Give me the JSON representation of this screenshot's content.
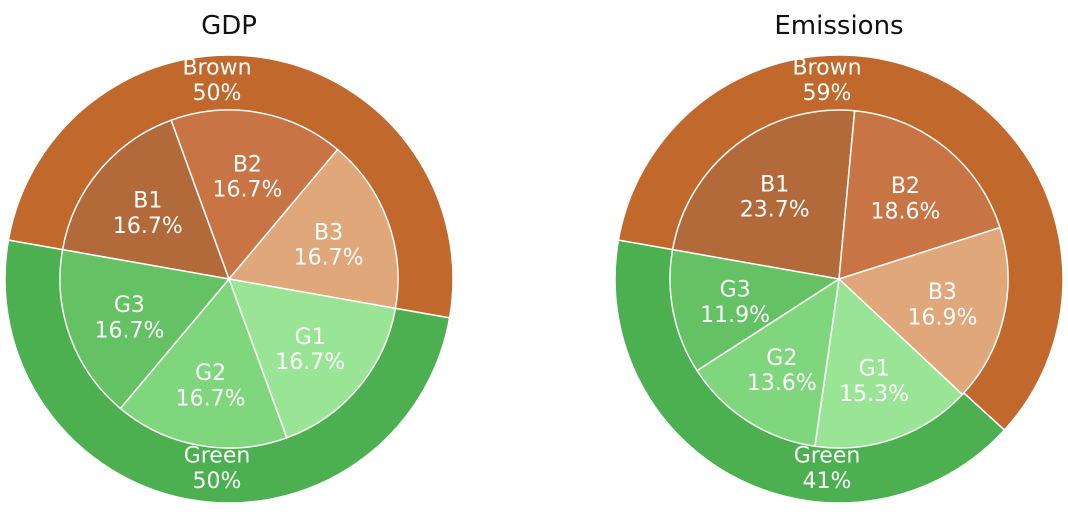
{
  "chart_data": [
    {
      "type": "pie",
      "title": "GDP",
      "outer_ring": [
        {
          "label": "Brown",
          "value": 50,
          "value_label": "50%",
          "color": "#c1682d"
        },
        {
          "label": "Green",
          "value": 50,
          "value_label": "50%",
          "color": "#4caf50"
        }
      ],
      "inner_ring": [
        {
          "label": "B1",
          "value": 16.7,
          "value_label": "16.7%",
          "color": "#b36a3a"
        },
        {
          "label": "B2",
          "value": 16.7,
          "value_label": "16.7%",
          "color": "#c87444"
        },
        {
          "label": "B3",
          "value": 16.7,
          "value_label": "16.7%",
          "color": "#e0a77b"
        },
        {
          "label": "G1",
          "value": 16.7,
          "value_label": "16.7%",
          "color": "#9ae495"
        },
        {
          "label": "G2",
          "value": 16.7,
          "value_label": "16.7%",
          "color": "#80d67c"
        },
        {
          "label": "G3",
          "value": 16.7,
          "value_label": "16.7%",
          "color": "#64c164"
        }
      ]
    },
    {
      "type": "pie",
      "title": "Emissions",
      "outer_ring": [
        {
          "label": "Brown",
          "value": 59,
          "value_label": "59%",
          "color": "#c1682d"
        },
        {
          "label": "Green",
          "value": 41,
          "value_label": "41%",
          "color": "#4caf50"
        }
      ],
      "inner_ring": [
        {
          "label": "B1",
          "value": 23.7,
          "value_label": "23.7%",
          "color": "#b36a3a"
        },
        {
          "label": "B2",
          "value": 18.6,
          "value_label": "18.6%",
          "color": "#c87444"
        },
        {
          "label": "B3",
          "value": 16.9,
          "value_label": "16.9%",
          "color": "#e0a77b"
        },
        {
          "label": "G1",
          "value": 15.3,
          "value_label": "15.3%",
          "color": "#9ae495"
        },
        {
          "label": "G2",
          "value": 13.6,
          "value_label": "13.6%",
          "color": "#80d67c"
        },
        {
          "label": "G3",
          "value": 11.9,
          "value_label": "11.9%",
          "color": "#64c164"
        }
      ]
    }
  ]
}
